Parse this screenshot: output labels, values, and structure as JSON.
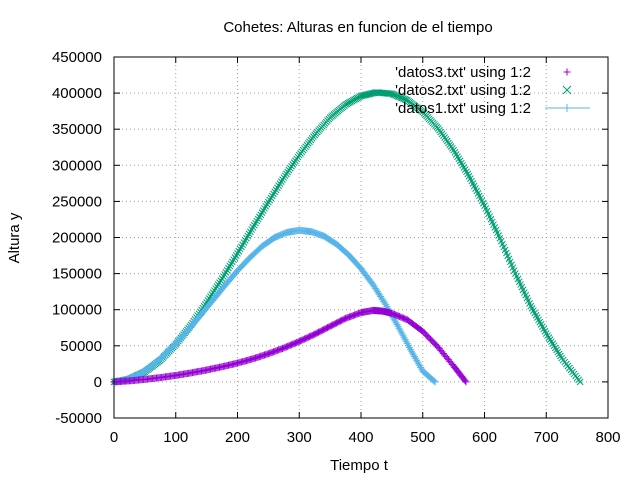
{
  "chart_data": {
    "type": "scatter",
    "title": "Cohetes: Alturas en funcion de el tiempo",
    "xlabel": "Tiempo t",
    "ylabel": "Altura y",
    "xlim": [
      0,
      800
    ],
    "ylim": [
      -50000,
      450000
    ],
    "xticks": [
      "0",
      "100",
      "200",
      "300",
      "400",
      "500",
      "600",
      "700",
      "800"
    ],
    "yticks": [
      "-50000",
      "0",
      "50000",
      "100000",
      "150000",
      "200000",
      "250000",
      "300000",
      "350000",
      "400000",
      "450000"
    ],
    "grid": true,
    "legend_position": "top-right",
    "series": [
      {
        "name": "'datos3.txt' using 1:2",
        "marker": "plus",
        "color": "#9400d3",
        "x": [
          0,
          25,
          50,
          75,
          100,
          125,
          150,
          175,
          200,
          225,
          250,
          275,
          300,
          325,
          350,
          375,
          400,
          420,
          435,
          450,
          475,
          500,
          525,
          550,
          570
        ],
        "y": [
          0,
          1500,
          3500,
          6000,
          9000,
          12500,
          16500,
          21000,
          26000,
          32000,
          39000,
          47000,
          56000,
          66000,
          77000,
          88000,
          96000,
          99000,
          98000,
          95000,
          86000,
          70000,
          48000,
          22000,
          0
        ]
      },
      {
        "name": "'datos2.txt' using 1:2",
        "marker": "cross",
        "color": "#009e73",
        "x": [
          0,
          25,
          50,
          75,
          100,
          125,
          150,
          175,
          200,
          225,
          250,
          275,
          300,
          325,
          350,
          375,
          400,
          425,
          450,
          475,
          500,
          525,
          550,
          575,
          600,
          625,
          650,
          675,
          700,
          725,
          755
        ],
        "y": [
          0,
          4000,
          14000,
          30000,
          52000,
          79000,
          110000,
          143000,
          178000,
          214000,
          249000,
          283000,
          314000,
          342000,
          366000,
          384000,
          396000,
          401000,
          399000,
          390000,
          374000,
          351000,
          321000,
          285000,
          244000,
          199000,
          150000,
          105000,
          67000,
          33000,
          0
        ]
      },
      {
        "name": "'datos1.txt' using 1:2",
        "marker": "line-plus",
        "color": "#56b4e9",
        "x": [
          0,
          20,
          40,
          60,
          80,
          100,
          120,
          140,
          160,
          180,
          200,
          220,
          240,
          260,
          280,
          300,
          320,
          340,
          360,
          380,
          400,
          420,
          440,
          460,
          480,
          500,
          520
        ],
        "y": [
          0,
          3000,
          10000,
          21000,
          36000,
          53000,
          72000,
          92000,
          113000,
          134000,
          154000,
          172000,
          188000,
          200000,
          207000,
          210000,
          208000,
          202000,
          191000,
          176000,
          157000,
          134000,
          107000,
          77000,
          45000,
          15000,
          0
        ]
      }
    ]
  }
}
